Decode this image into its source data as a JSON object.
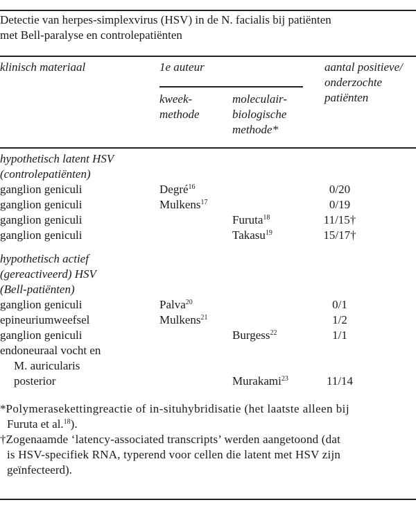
{
  "caption": {
    "line1": "Detectie van herpes-simplexvirus (HSV) in de N. facialis bij patiënten",
    "line2": "met Bell-paralyse en controlepatiënten"
  },
  "header": {
    "col1": "klinisch materiaal",
    "col2_group": "1e auteur",
    "col2a": [
      "kweek-",
      "methode"
    ],
    "col2b": [
      "moleculair-",
      "biologische",
      "methode*"
    ],
    "col4": [
      "aantal positieve/",
      "onderzochte",
      "patiënten"
    ]
  },
  "groups": [
    {
      "title": [
        "hypothetisch latent HSV",
        "(controlepatiënten)"
      ],
      "rows": [
        {
          "material": "ganglion geniculi",
          "culture": "Degré",
          "culture_ref": "16",
          "molecular": "",
          "molecular_ref": "",
          "count": "0/20"
        },
        {
          "material": "ganglion geniculi",
          "culture": "Mulkens",
          "culture_ref": "17",
          "molecular": "",
          "molecular_ref": "",
          "count": "0/19"
        },
        {
          "material": "ganglion geniculi",
          "culture": "",
          "culture_ref": "",
          "molecular": "Furuta",
          "molecular_ref": "18",
          "count": "11/15†"
        },
        {
          "material": "ganglion geniculi",
          "culture": "",
          "culture_ref": "",
          "molecular": "Takasu",
          "molecular_ref": "19",
          "count": "15/17†"
        }
      ]
    },
    {
      "title": [
        "hypothetisch actief",
        "(gereactiveerd) HSV",
        "(Bell-patiënten)"
      ],
      "rows": [
        {
          "material": "ganglion geniculi",
          "culture": "Palva",
          "culture_ref": "20",
          "molecular": "",
          "molecular_ref": "",
          "count": "0/1"
        },
        {
          "material": "epineuriumweefsel",
          "culture": "Mulkens",
          "culture_ref": "21",
          "molecular": "",
          "molecular_ref": "",
          "count": "1/2"
        },
        {
          "material": "ganglion geniculi",
          "culture": "",
          "culture_ref": "",
          "molecular": "Burgess",
          "molecular_ref": "22",
          "count": "1/1"
        },
        {
          "material_lines": [
            "endoneuraal vocht en",
            "M. auricularis",
            "posterior"
          ],
          "culture": "",
          "culture_ref": "",
          "molecular": "Murakami",
          "molecular_ref": "23",
          "count": "11/14"
        }
      ]
    }
  ],
  "footnotes": {
    "star": {
      "marker": "*",
      "line1": "Polymerasekettingreactie of in-situhybridisatie (het laatste alleen bij",
      "line2_pre": "Furuta et al.",
      "line2_ref": "18",
      "line2_post": ")."
    },
    "dagger": {
      "marker": "†",
      "lines": [
        "Zogenaamde ‘latency-associated transcripts’ werden aangetoond (dat",
        "is HSV-specifiek RNA, typerend voor cellen die latent met HSV zijn",
        "geïnfecteerd)."
      ]
    }
  }
}
